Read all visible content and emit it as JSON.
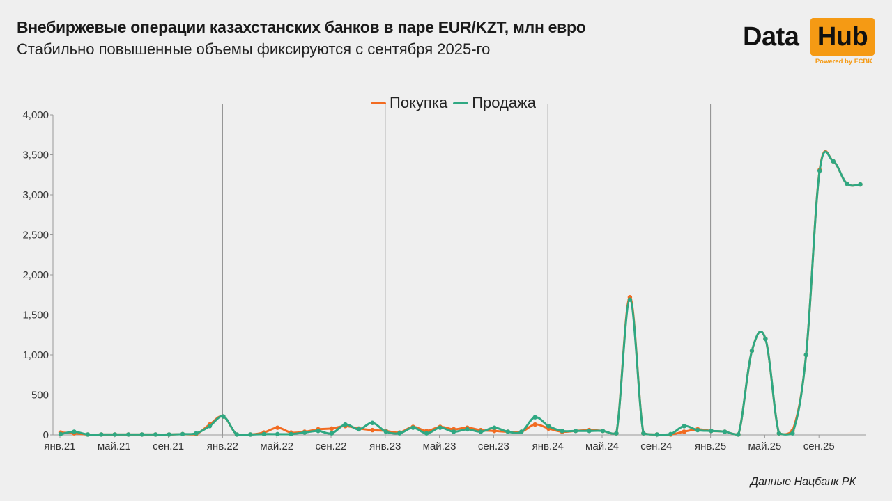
{
  "header": {
    "title": "Внебиржевые операции казахстанских банков в паре EUR/KZT, млн евро",
    "subtitle": "Стабильно повышенные объемы фиксируются с сентября 2025-го"
  },
  "logo": {
    "data_text": "Data",
    "hub_text": "Hub",
    "powered_text": "Powered by FCBK",
    "accent_color": "#f59a14"
  },
  "legend": {
    "items": [
      {
        "label": "Покупка",
        "color": "#f26b21"
      },
      {
        "label": "Продажа",
        "color": "#2fa882"
      }
    ]
  },
  "footer": {
    "source": "Данные Нацбанк РК"
  },
  "chart_data": {
    "type": "line",
    "title": "Внебиржевые операции казахстанских банков в паре EUR/KZT, млн евро",
    "subtitle": "Стабильно повышенные объемы фиксируются с сентября 2025-го",
    "xlabel": "",
    "ylabel": "",
    "ylim": [
      0,
      4000
    ],
    "yticks": [
      0,
      500,
      1000,
      1500,
      2000,
      2500,
      3000,
      3500,
      4000
    ],
    "ytick_labels": [
      "0",
      "500",
      "1,000",
      "1,500",
      "2,000",
      "2,500",
      "3,000",
      "3,500",
      "4,000"
    ],
    "xtick_labels": [
      "янв.21",
      "май.21",
      "сен.21",
      "янв.22",
      "май.22",
      "сен.22",
      "янв.23",
      "май.23",
      "сен.23",
      "янв.24",
      "май.24",
      "сен.24",
      "янв.25",
      "май.25",
      "сен.25"
    ],
    "vertical_gridlines_at": [
      "янв.22",
      "янв.23",
      "янв.24",
      "янв.25"
    ],
    "legend_position": "top-center",
    "grid": false,
    "smooth": true,
    "markers": true,
    "x": [
      "янв.21",
      "фев.21",
      "мар.21",
      "апр.21",
      "май.21",
      "июн.21",
      "июл.21",
      "авг.21",
      "сен.21",
      "окт.21",
      "ноя.21",
      "дек.21",
      "янв.22",
      "фев.22",
      "мар.22",
      "апр.22",
      "май.22",
      "июн.22",
      "июл.22",
      "авг.22",
      "сен.22",
      "окт.22",
      "ноя.22",
      "дек.22",
      "янв.23",
      "фев.23",
      "мар.23",
      "апр.23",
      "май.23",
      "июн.23",
      "июл.23",
      "авг.23",
      "сен.23",
      "окт.23",
      "ноя.23",
      "дек.23",
      "янв.24",
      "фев.24",
      "мар.24",
      "апр.24",
      "май.24",
      "июн.24",
      "июл.24",
      "авг.24",
      "сен.24",
      "окт.24",
      "ноя.24",
      "дек.24",
      "янв.25",
      "фев.25",
      "мар.25",
      "апр.25",
      "май.25",
      "июн.25",
      "июл.25",
      "авг.25",
      "сен.25",
      "окт.25",
      "ноя.25",
      "дек.25"
    ],
    "series": [
      {
        "name": "Покупка",
        "color": "#f26b21",
        "values": [
          30,
          20,
          5,
          5,
          5,
          5,
          5,
          5,
          5,
          10,
          10,
          130,
          230,
          5,
          5,
          30,
          90,
          30,
          40,
          70,
          80,
          110,
          80,
          60,
          50,
          30,
          100,
          50,
          100,
          70,
          90,
          60,
          50,
          40,
          40,
          130,
          80,
          40,
          50,
          60,
          50,
          20,
          1720,
          20,
          5,
          5,
          40,
          70,
          50,
          40,
          5,
          1050,
          1200,
          20,
          50,
          1000,
          3310,
          3420,
          3140,
          3130
        ]
      },
      {
        "name": "Продажа",
        "color": "#2fa882",
        "values": [
          10,
          40,
          5,
          5,
          5,
          5,
          5,
          5,
          5,
          10,
          20,
          110,
          230,
          5,
          5,
          10,
          10,
          10,
          30,
          50,
          20,
          130,
          70,
          150,
          40,
          20,
          90,
          20,
          90,
          40,
          70,
          40,
          90,
          40,
          40,
          220,
          110,
          50,
          50,
          50,
          50,
          20,
          1690,
          20,
          5,
          10,
          110,
          60,
          50,
          40,
          5,
          1050,
          1200,
          20,
          20,
          1000,
          3300,
          3420,
          3140,
          3130
        ]
      }
    ]
  }
}
